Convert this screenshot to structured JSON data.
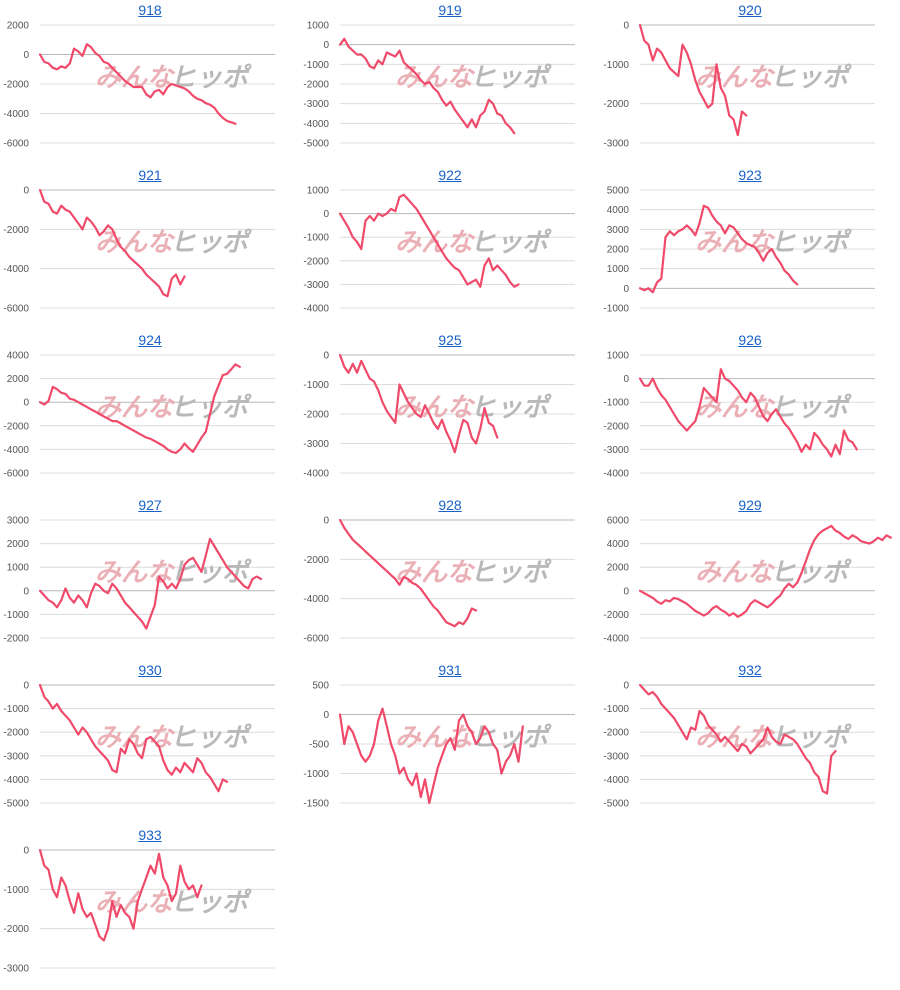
{
  "watermark": {
    "part1": "みんな",
    "part2": "ヒッポ"
  },
  "colors": {
    "line": "#f04a6a",
    "title": "#1a62c7",
    "grid": "#dcdcdc"
  },
  "chart_data": [
    {
      "type": "line",
      "title": "918",
      "ylim": [
        -6000,
        2000
      ],
      "yticks": [
        2000,
        0,
        -2000,
        -4000,
        -6000
      ],
      "values": [
        0,
        -500,
        -600,
        -900,
        -1000,
        -800,
        -900,
        -600,
        400,
        200,
        -100,
        700,
        500,
        100,
        -100,
        -500,
        -600,
        -900,
        -1200,
        -1500,
        -1800,
        -2000,
        -2200,
        -2200,
        -2200,
        -2700,
        -2900,
        -2500,
        -2400,
        -2700,
        -2200,
        -2000,
        -2100,
        -2200,
        -2300,
        -2500,
        -2800,
        -3000,
        -3100,
        -3300,
        -3400,
        -3600,
        -4000,
        -4300,
        -4500,
        -4600,
        -4700
      ]
    },
    {
      "type": "line",
      "title": "919",
      "ylim": [
        -5000,
        1000
      ],
      "yticks": [
        1000,
        0,
        -1000,
        -2000,
        -3000,
        -4000,
        -5000
      ],
      "values": [
        0,
        300,
        -100,
        -300,
        -500,
        -500,
        -700,
        -1100,
        -1200,
        -800,
        -1000,
        -400,
        -500,
        -600,
        -300,
        -900,
        -1100,
        -1300,
        -1500,
        -1800,
        -2000,
        -1900,
        -2200,
        -2400,
        -2800,
        -3100,
        -2900,
        -3300,
        -3600,
        -3900,
        -4200,
        -3800,
        -4200,
        -3600,
        -3400,
        -2800,
        -3000,
        -3500,
        -3600,
        -4000,
        -4200,
        -4500
      ]
    },
    {
      "type": "line",
      "title": "920",
      "ylim": [
        -3000,
        0
      ],
      "yticks": [
        0,
        -1000,
        -2000,
        -3000
      ],
      "values": [
        0,
        -400,
        -500,
        -900,
        -600,
        -700,
        -900,
        -1100,
        -1200,
        -1300,
        -500,
        -700,
        -1000,
        -1400,
        -1700,
        -1900,
        -2100,
        -2000,
        -1000,
        -1600,
        -1800,
        -2300,
        -2400,
        -2800,
        -2200,
        -2300
      ]
    },
    {
      "type": "line",
      "title": "921",
      "ylim": [
        -6000,
        0
      ],
      "yticks": [
        0,
        -2000,
        -4000,
        -6000
      ],
      "values": [
        0,
        -600,
        -700,
        -1100,
        -1200,
        -800,
        -1000,
        -1100,
        -1400,
        -1700,
        -2000,
        -1400,
        -1600,
        -1900,
        -2300,
        -2100,
        -1800,
        -2000,
        -2500,
        -2900,
        -3100,
        -3400,
        -3600,
        -3800,
        -4000,
        -4300,
        -4500,
        -4700,
        -4900,
        -5300,
        -5400,
        -4500,
        -4300,
        -4800,
        -4400
      ]
    },
    {
      "type": "line",
      "title": "922",
      "ylim": [
        -4000,
        1000
      ],
      "yticks": [
        1000,
        0,
        -1000,
        -2000,
        -3000,
        -4000
      ],
      "values": [
        0,
        -300,
        -600,
        -1000,
        -1200,
        -1500,
        -300,
        -100,
        -300,
        0,
        -100,
        0,
        200,
        100,
        700,
        800,
        600,
        400,
        200,
        -100,
        -400,
        -700,
        -1000,
        -1300,
        -1600,
        -1900,
        -2100,
        -2300,
        -2400,
        -2700,
        -3000,
        -2900,
        -2800,
        -3100,
        -2200,
        -1900,
        -2400,
        -2200,
        -2400,
        -2600,
        -2900,
        -3100,
        -3000
      ]
    },
    {
      "type": "line",
      "title": "923",
      "ylim": [
        -1000,
        5000
      ],
      "yticks": [
        5000,
        4000,
        3000,
        2000,
        1000,
        0,
        -1000
      ],
      "values": [
        0,
        -100,
        0,
        -200,
        300,
        500,
        2600,
        2900,
        2700,
        2900,
        3000,
        3200,
        3000,
        2700,
        3300,
        4200,
        4100,
        3700,
        3400,
        3200,
        2800,
        3200,
        3100,
        2800,
        2500,
        2300,
        2200,
        2100,
        1800,
        1400,
        1800,
        2000,
        1600,
        1300,
        900,
        700,
        400,
        200
      ]
    },
    {
      "type": "line",
      "title": "924",
      "ylim": [
        -6000,
        4000
      ],
      "yticks": [
        4000,
        2000,
        0,
        -2000,
        -4000,
        -6000
      ],
      "values": [
        0,
        -200,
        100,
        1300,
        1100,
        800,
        700,
        300,
        200,
        0,
        -200,
        -400,
        -600,
        -800,
        -1000,
        -1200,
        -1400,
        -1600,
        -1600,
        -1800,
        -2000,
        -2200,
        -2400,
        -2600,
        -2800,
        -3000,
        -3100,
        -3300,
        -3500,
        -3700,
        -4000,
        -4200,
        -4300,
        -4000,
        -3500,
        -3900,
        -4200,
        -3600,
        -3000,
        -2500,
        -1000,
        500,
        1400,
        2300,
        2400,
        2800,
        3200,
        3000
      ]
    },
    {
      "type": "line",
      "title": "925",
      "ylim": [
        -4000,
        0
      ],
      "yticks": [
        0,
        -1000,
        -2000,
        -3000,
        -4000
      ],
      "values": [
        0,
        -400,
        -600,
        -300,
        -600,
        -200,
        -500,
        -800,
        -900,
        -1200,
        -1600,
        -1900,
        -2100,
        -2300,
        -1000,
        -1300,
        -1600,
        -1800,
        -2000,
        -2100,
        -1700,
        -2000,
        -2300,
        -2500,
        -2200,
        -2600,
        -2900,
        -3300,
        -2700,
        -2200,
        -2300,
        -2800,
        -3000,
        -2500,
        -1800,
        -2300,
        -2400,
        -2800
      ]
    },
    {
      "type": "line",
      "title": "926",
      "ylim": [
        -4000,
        1000
      ],
      "yticks": [
        1000,
        0,
        -1000,
        -2000,
        -3000,
        -4000
      ],
      "values": [
        0,
        -300,
        -300,
        0,
        -400,
        -700,
        -900,
        -1200,
        -1500,
        -1800,
        -2000,
        -2200,
        -2000,
        -1800,
        -1200,
        -400,
        -600,
        -800,
        -1000,
        400,
        0,
        -100,
        -300,
        -500,
        -800,
        -1000,
        -600,
        -800,
        -1200,
        -1600,
        -1800,
        -1500,
        -1300,
        -1600,
        -1900,
        -2100,
        -2400,
        -2700,
        -3100,
        -2800,
        -3000,
        -2300,
        -2500,
        -2800,
        -3000,
        -3300,
        -2800,
        -3200,
        -2200,
        -2600,
        -2700,
        -3000
      ]
    },
    {
      "type": "line",
      "title": "927",
      "ylim": [
        -2000,
        3000
      ],
      "yticks": [
        3000,
        2000,
        1000,
        0,
        -1000,
        -2000
      ],
      "values": [
        0,
        -200,
        -400,
        -500,
        -700,
        -400,
        100,
        -300,
        -500,
        -200,
        -400,
        -700,
        -100,
        300,
        200,
        0,
        -100,
        300,
        100,
        -200,
        -500,
        -700,
        -900,
        -1100,
        -1300,
        -1600,
        -1100,
        -600,
        600,
        400,
        100,
        300,
        100,
        500,
        1100,
        1300,
        1400,
        1100,
        800,
        1500,
        2200,
        1900,
        1600,
        1300,
        1000,
        800,
        600,
        400,
        200,
        100,
        500,
        600,
        500
      ]
    },
    {
      "type": "line",
      "title": "928",
      "ylim": [
        -6000,
        0
      ],
      "yticks": [
        0,
        -2000,
        -4000,
        -6000
      ],
      "values": [
        0,
        -400,
        -700,
        -1000,
        -1200,
        -1400,
        -1600,
        -1800,
        -2000,
        -2200,
        -2400,
        -2600,
        -2800,
        -3000,
        -3300,
        -2900,
        -3000,
        -3200,
        -3300,
        -3500,
        -3800,
        -4100,
        -4400,
        -4600,
        -4900,
        -5200,
        -5300,
        -5400,
        -5200,
        -5300,
        -5000,
        -4500,
        -4600
      ]
    },
    {
      "type": "line",
      "title": "929",
      "ylim": [
        -4000,
        6000
      ],
      "yticks": [
        6000,
        4000,
        2000,
        0,
        -2000,
        -4000
      ],
      "values": [
        0,
        -200,
        -400,
        -600,
        -900,
        -1100,
        -800,
        -900,
        -600,
        -700,
        -900,
        -1100,
        -1400,
        -1700,
        -1900,
        -2100,
        -1900,
        -1500,
        -1300,
        -1600,
        -1800,
        -2100,
        -1900,
        -2200,
        -2000,
        -1700,
        -1100,
        -800,
        -1000,
        -1200,
        -1400,
        -1100,
        -700,
        -400,
        200,
        600,
        300,
        700,
        1500,
        2500,
        3500,
        4300,
        4800,
        5100,
        5300,
        5500,
        5100,
        4900,
        4600,
        4400,
        4700,
        4500,
        4200,
        4100,
        4000,
        4200,
        4500,
        4300,
        4700,
        4500
      ]
    },
    {
      "type": "line",
      "title": "930",
      "ylim": [
        -5000,
        0
      ],
      "yticks": [
        0,
        -1000,
        -2000,
        -3000,
        -4000,
        -5000
      ],
      "values": [
        0,
        -500,
        -700,
        -1000,
        -800,
        -1100,
        -1300,
        -1500,
        -1800,
        -2100,
        -1800,
        -2000,
        -2300,
        -2600,
        -2800,
        -3000,
        -3200,
        -3600,
        -3700,
        -2700,
        -2900,
        -2300,
        -2500,
        -2900,
        -3100,
        -2300,
        -2200,
        -2400,
        -2600,
        -3200,
        -3600,
        -3800,
        -3500,
        -3700,
        -3300,
        -3500,
        -3700,
        -3100,
        -3300,
        -3700,
        -3900,
        -4200,
        -4500,
        -4000,
        -4100
      ]
    },
    {
      "type": "line",
      "title": "931",
      "ylim": [
        -1500,
        500
      ],
      "yticks": [
        500,
        0,
        -500,
        -1000,
        -1500
      ],
      "values": [
        0,
        -500,
        -200,
        -300,
        -500,
        -700,
        -800,
        -700,
        -500,
        -100,
        100,
        -200,
        -500,
        -700,
        -1000,
        -900,
        -1100,
        -1200,
        -1000,
        -1400,
        -1100,
        -1500,
        -1200,
        -900,
        -700,
        -500,
        -400,
        -600,
        -100,
        0,
        -200,
        -300,
        -500,
        -400,
        -200,
        -300,
        -500,
        -600,
        -1000,
        -800,
        -700,
        -500,
        -800,
        -200
      ]
    },
    {
      "type": "line",
      "title": "932",
      "ylim": [
        -5000,
        0
      ],
      "yticks": [
        0,
        -1000,
        -2000,
        -3000,
        -4000,
        -5000
      ],
      "values": [
        0,
        -200,
        -400,
        -300,
        -500,
        -800,
        -1000,
        -1200,
        -1400,
        -1700,
        -2000,
        -2300,
        -1800,
        -1900,
        -1100,
        -1300,
        -1700,
        -1900,
        -2100,
        -2400,
        -2200,
        -2400,
        -2600,
        -2800,
        -2500,
        -2600,
        -2900,
        -2700,
        -2500,
        -2300,
        -1800,
        -2200,
        -2400,
        -2500,
        -2100,
        -2200,
        -2300,
        -2500,
        -2800,
        -3100,
        -3300,
        -3700,
        -3900,
        -4500,
        -4600,
        -3000,
        -2800
      ]
    },
    {
      "type": "line",
      "title": "933",
      "ylim": [
        -3000,
        0
      ],
      "yticks": [
        0,
        -1000,
        -2000,
        -3000
      ],
      "values": [
        0,
        -400,
        -500,
        -1000,
        -1200,
        -700,
        -900,
        -1300,
        -1600,
        -1100,
        -1500,
        -1700,
        -1600,
        -1900,
        -2200,
        -2300,
        -2000,
        -1300,
        -1700,
        -1400,
        -1600,
        -1700,
        -2000,
        -1300,
        -1000,
        -700,
        -400,
        -600,
        -100,
        -700,
        -900,
        -1300,
        -1100,
        -400,
        -800,
        -1000,
        -900,
        -1200,
        -900
      ]
    }
  ]
}
